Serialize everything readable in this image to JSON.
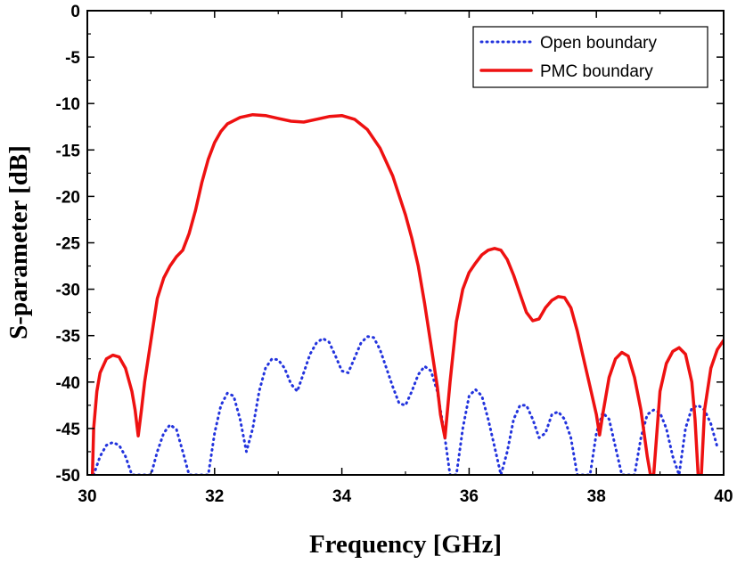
{
  "chart_data": {
    "type": "line",
    "title": "",
    "xlabel": "Frequency [GHz]",
    "ylabel": "S-parameter [dB]",
    "xlim": [
      30,
      40
    ],
    "ylim": [
      -50,
      0
    ],
    "xticks": [
      30,
      32,
      34,
      36,
      38,
      40
    ],
    "yticks": [
      0,
      -5,
      -10,
      -15,
      -20,
      -25,
      -30,
      -35,
      -40,
      -45,
      -50
    ],
    "grid": false,
    "legend_position": "top-right",
    "series": [
      {
        "name": "Open boundary",
        "color": "#2233dd",
        "style": "dotted",
        "x": [
          30.1,
          30.2,
          30.3,
          30.4,
          30.5,
          30.6,
          30.7,
          30.8,
          30.9,
          31.0,
          31.1,
          31.2,
          31.3,
          31.4,
          31.5,
          31.6,
          31.7,
          31.8,
          31.9,
          32.0,
          32.1,
          32.2,
          32.3,
          32.4,
          32.5,
          32.6,
          32.7,
          32.8,
          32.9,
          33.0,
          33.1,
          33.2,
          33.3,
          33.4,
          33.5,
          33.6,
          33.7,
          33.8,
          33.9,
          34.0,
          34.1,
          34.2,
          34.3,
          34.4,
          34.5,
          34.6,
          34.7,
          34.8,
          34.9,
          35.0,
          35.1,
          35.2,
          35.3,
          35.4,
          35.5,
          35.6,
          35.7,
          35.8,
          35.9,
          36.0,
          36.1,
          36.2,
          36.3,
          36.4,
          36.5,
          36.6,
          36.7,
          36.8,
          36.9,
          37.0,
          37.1,
          37.2,
          37.3,
          37.4,
          37.5,
          37.6,
          37.7,
          37.8,
          37.9,
          38.0,
          38.1,
          38.2,
          38.3,
          38.4,
          38.5,
          38.6,
          38.7,
          38.8,
          38.9,
          39.0,
          39.1,
          39.2,
          39.3,
          39.4,
          39.5,
          39.6,
          39.7,
          39.8,
          39.9
        ],
        "y": [
          -50,
          -48,
          -46.8,
          -46.5,
          -46.8,
          -48,
          -50,
          -50,
          -50,
          -50,
          -47.5,
          -45.5,
          -44.6,
          -45.1,
          -47.5,
          -50,
          -50,
          -50,
          -50,
          -45.5,
          -42.5,
          -41.2,
          -41.5,
          -44,
          -47.5,
          -45,
          -41,
          -38.5,
          -37.5,
          -37.6,
          -38.5,
          -40.2,
          -41,
          -39,
          -37,
          -35.8,
          -35.3,
          -35.7,
          -37.2,
          -38.8,
          -39,
          -37.4,
          -35.8,
          -35.1,
          -35.2,
          -36.5,
          -38.5,
          -40.5,
          -42.3,
          -42.5,
          -41,
          -39.2,
          -38.3,
          -38.8,
          -41,
          -45,
          -50,
          -50,
          -45,
          -41.5,
          -40.8,
          -41.5,
          -44,
          -47,
          -50,
          -47.5,
          -44,
          -42.5,
          -42.5,
          -44,
          -46,
          -45.5,
          -43.5,
          -43.2,
          -44,
          -46,
          -50,
          -50,
          -50,
          -45.5,
          -43.3,
          -44,
          -47,
          -50,
          -50,
          -50,
          -46,
          -43.5,
          -43,
          -43.3,
          -45,
          -48,
          -50,
          -45,
          -42.8,
          -42.5,
          -43,
          -44.5,
          -47
        ]
      },
      {
        "name": "PMC boundary",
        "color": "#ee1111",
        "style": "solid",
        "x": [
          30.08,
          30.1,
          30.15,
          30.2,
          30.3,
          30.4,
          30.5,
          30.6,
          30.7,
          30.75,
          30.8,
          30.85,
          30.9,
          31.0,
          31.1,
          31.2,
          31.3,
          31.4,
          31.5,
          31.6,
          31.7,
          31.8,
          31.9,
          32.0,
          32.1,
          32.2,
          32.4,
          32.6,
          32.8,
          33.0,
          33.2,
          33.4,
          33.6,
          33.8,
          34.0,
          34.2,
          34.4,
          34.6,
          34.8,
          35.0,
          35.1,
          35.2,
          35.3,
          35.4,
          35.5,
          35.55,
          35.62,
          35.7,
          35.8,
          35.9,
          36.0,
          36.1,
          36.2,
          36.3,
          36.4,
          36.5,
          36.6,
          36.7,
          36.8,
          36.9,
          37.0,
          37.1,
          37.2,
          37.3,
          37.4,
          37.5,
          37.6,
          37.7,
          37.8,
          37.9,
          38.0,
          38.05,
          38.1,
          38.2,
          38.3,
          38.4,
          38.5,
          38.6,
          38.7,
          38.8,
          38.85,
          38.9,
          39.0,
          39.1,
          39.2,
          39.3,
          39.4,
          39.5,
          39.55,
          39.6,
          39.65,
          39.7,
          39.8,
          39.9,
          40.0
        ],
        "y": [
          -50,
          -45,
          -41,
          -39,
          -37.5,
          -37.1,
          -37.3,
          -38.5,
          -41,
          -43,
          -45.8,
          -43,
          -40,
          -35.5,
          -31,
          -28.8,
          -27.5,
          -26.5,
          -25.8,
          -24,
          -21.5,
          -18.5,
          -16,
          -14.2,
          -13,
          -12.2,
          -11.5,
          -11.2,
          -11.3,
          -11.6,
          -11.9,
          -12,
          -11.7,
          -11.4,
          -11.3,
          -11.7,
          -12.8,
          -14.8,
          -17.8,
          -22,
          -24.5,
          -27.5,
          -31.5,
          -36,
          -40.5,
          -43.5,
          -46,
          -40,
          -33.5,
          -30,
          -28.2,
          -27.2,
          -26.3,
          -25.8,
          -25.6,
          -25.8,
          -26.8,
          -28.5,
          -30.5,
          -32.5,
          -33.4,
          -33.2,
          -32,
          -31.2,
          -30.8,
          -30.9,
          -32,
          -34.5,
          -37.5,
          -40.5,
          -43.5,
          -45.7,
          -43.5,
          -39.5,
          -37.5,
          -36.8,
          -37.2,
          -39.5,
          -43,
          -48,
          -50,
          -50,
          -41,
          -38,
          -36.7,
          -36.3,
          -37,
          -40,
          -44,
          -50,
          -50,
          -43,
          -38.5,
          -36.5,
          -35.5
        ]
      }
    ]
  }
}
